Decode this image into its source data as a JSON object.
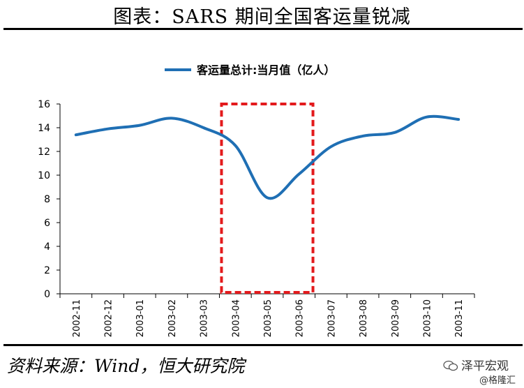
{
  "header": {
    "title": "图表：SARS 期间全国客运量锐减"
  },
  "footer": {
    "source": "资料来源：Wind，恒大研究院",
    "watermark_main": "泽平宏观",
    "watermark_sub": "@格隆汇"
  },
  "colors": {
    "series": "#1f6fb4",
    "highlight": "#e31a1c",
    "text": "#000000"
  },
  "chart_data": {
    "type": "line",
    "title": "",
    "legend_position": "top-center",
    "xlabel": "",
    "ylabel": "",
    "categories": [
      "2002-11",
      "2002-12",
      "2003-01",
      "2003-02",
      "2003-03",
      "2003-04",
      "2003-05",
      "2003-06",
      "2003-07",
      "2003-08",
      "2003-09",
      "2003-10",
      "2003-11"
    ],
    "series": [
      {
        "name": "客运量总计:当月值（亿人）",
        "values": [
          13.4,
          13.9,
          14.2,
          14.8,
          14.0,
          12.5,
          8.1,
          10.1,
          12.4,
          13.3,
          13.6,
          14.9,
          14.7
        ]
      }
    ],
    "ylim": [
      0,
      16
    ],
    "yticks": [
      "0",
      "2",
      "4",
      "6",
      "8",
      "10",
      "12",
      "14",
      "16"
    ],
    "highlight_range": [
      "2003-04",
      "2003-06"
    ],
    "grid": false
  }
}
